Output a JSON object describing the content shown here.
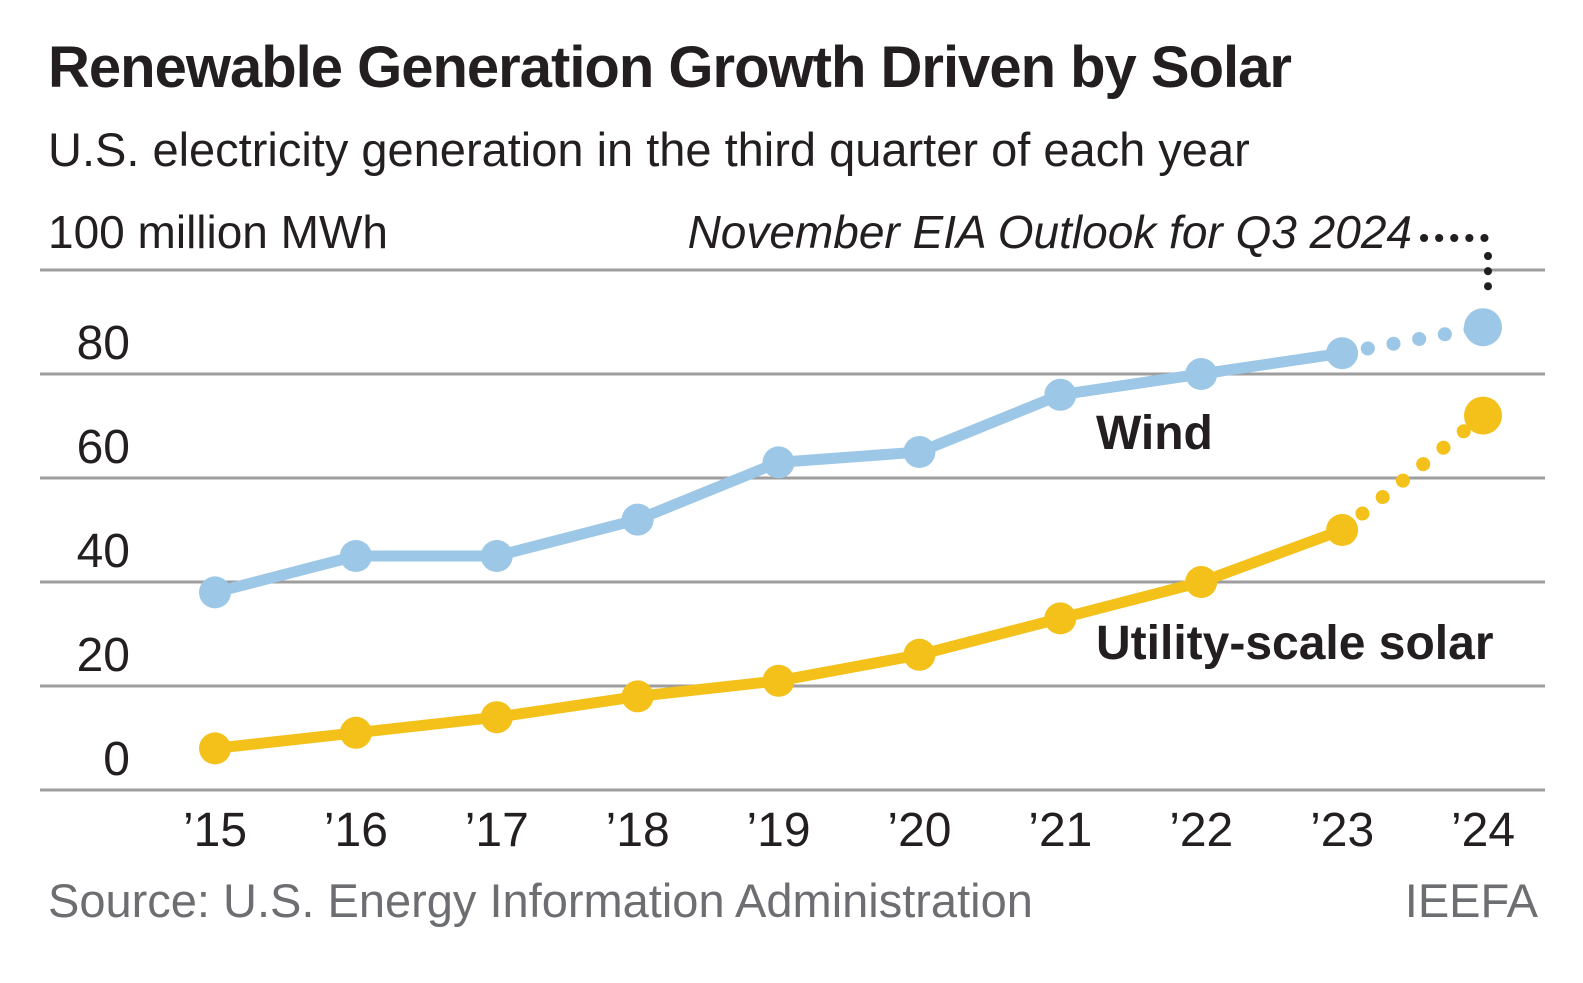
{
  "chart_data": {
    "type": "line",
    "title": "Renewable Generation Growth Driven by Solar",
    "subtitle": "U.S. electricity generation in the third quarter of each year",
    "y_unit_label": "100 million MWh",
    "annotation": "November EIA Outlook for Q3 2024",
    "xlabel": "",
    "ylabel": "100 million MWh",
    "ylim": [
      0,
      100
    ],
    "grid": true,
    "legend": "inline-labels",
    "categories": [
      "’15",
      "’16",
      "’17",
      "’18",
      "’19",
      "’20",
      "’21",
      "’22",
      "’23",
      "’24"
    ],
    "y_ticks": [
      0,
      20,
      40,
      60,
      80,
      100
    ],
    "y_tick_labels": [
      "0",
      "20",
      "40",
      "60",
      "80",
      ""
    ],
    "series": [
      {
        "name": "Wind",
        "color": "#9dc7e6",
        "values": [
          38,
          45,
          45,
          52,
          63,
          65,
          76,
          80,
          84,
          89
        ],
        "projected_last_segment": true
      },
      {
        "name": "Utility-scale solar",
        "color": "#f3c11a",
        "values": [
          8,
          11,
          14,
          18,
          21,
          26,
          33,
          40,
          50,
          72
        ],
        "projected_last_segment": true
      }
    ],
    "colors": {
      "wind": "#9dc7e6",
      "solar": "#f3c11a",
      "grid": "#9e9e9e",
      "text": "#231f20",
      "muted": "#6d6e71"
    },
    "source": "Source: U.S. Energy Information Administration",
    "credit": "IEEFA"
  }
}
